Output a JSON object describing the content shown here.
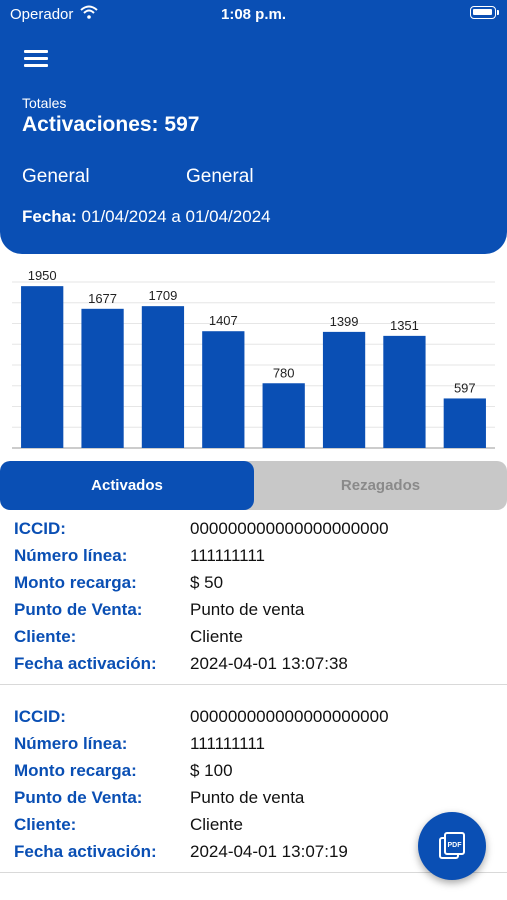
{
  "status_bar": {
    "carrier": "Operador",
    "time": "1:08 p.m."
  },
  "header": {
    "totals_label": "Totales",
    "activations_label": "Activaciones:",
    "activations_value": "597",
    "filter_1": "General",
    "filter_2": "General",
    "date_label": "Fecha:",
    "date_range": "01/04/2024 a 01/04/2024"
  },
  "chart_data": {
    "type": "bar",
    "values": [
      1950,
      1677,
      1709,
      1407,
      780,
      1399,
      1351,
      597
    ],
    "ylim": [
      0,
      2000
    ],
    "grid": true,
    "color": "#0a4fb4"
  },
  "tabs": [
    {
      "label": "Activados",
      "active": true
    },
    {
      "label": "Rezagados",
      "active": false
    }
  ],
  "records": [
    {
      "fields": [
        {
          "label": "ICCID:",
          "value": "000000000000000000000"
        },
        {
          "label": "Número línea:",
          "value": "111111111"
        },
        {
          "label": "Monto recarga:",
          "value": "$ 50"
        },
        {
          "label": "Punto de Venta:",
          "value": "Punto de venta"
        },
        {
          "label": "Cliente:",
          "value": "Cliente"
        },
        {
          "label": "Fecha activación:",
          "value": "2024-04-01 13:07:38"
        }
      ]
    },
    {
      "fields": [
        {
          "label": "ICCID:",
          "value": "000000000000000000000"
        },
        {
          "label": "Número línea:",
          "value": "111111111"
        },
        {
          "label": "Monto recarga:",
          "value": "$ 100"
        },
        {
          "label": "Punto de Venta:",
          "value": "Punto de venta"
        },
        {
          "label": "Cliente:",
          "value": "Cliente"
        },
        {
          "label": "Fecha activación:",
          "value": "2024-04-01 13:07:19"
        }
      ]
    }
  ],
  "fab": {
    "icon": "pdf-icon",
    "label": "PDF"
  },
  "colors": {
    "primary": "#0a4fb4",
    "tab_inactive_bg": "#c8c8c8",
    "tab_inactive_text": "#8a8a8a"
  }
}
